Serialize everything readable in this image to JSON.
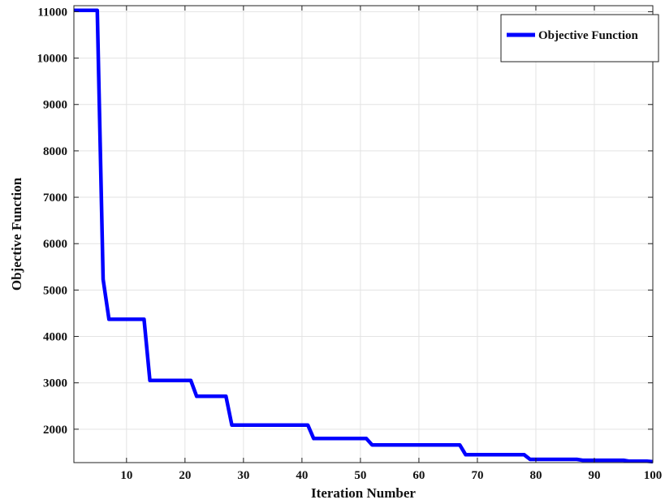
{
  "chart_data": {
    "type": "line",
    "title": "",
    "xlabel": "Iteration Number",
    "ylabel": "Objective Function",
    "xlim": [
      1,
      100
    ],
    "ylim": [
      1280,
      11130
    ],
    "grid": true,
    "legend_position": "top-right",
    "x_ticks": [
      10,
      20,
      30,
      40,
      50,
      60,
      70,
      80,
      90,
      100
    ],
    "y_ticks": [
      2000,
      3000,
      4000,
      5000,
      6000,
      7000,
      8000,
      9000,
      10000,
      11000
    ],
    "series": [
      {
        "name": "Objective Function",
        "color": "#0000ff",
        "points": [
          [
            1,
            11030
          ],
          [
            5,
            11030
          ],
          [
            6,
            5230
          ],
          [
            7,
            4370
          ],
          [
            13,
            4370
          ],
          [
            14,
            3050
          ],
          [
            21,
            3050
          ],
          [
            22,
            2710
          ],
          [
            27,
            2710
          ],
          [
            28,
            2090
          ],
          [
            41,
            2090
          ],
          [
            42,
            1800
          ],
          [
            51,
            1800
          ],
          [
            52,
            1660
          ],
          [
            67,
            1660
          ],
          [
            68,
            1450
          ],
          [
            78,
            1450
          ],
          [
            79,
            1350
          ],
          [
            87,
            1350
          ],
          [
            88,
            1330
          ],
          [
            95,
            1330
          ],
          [
            96,
            1310
          ],
          [
            99,
            1310
          ],
          [
            100,
            1300
          ]
        ]
      }
    ]
  }
}
